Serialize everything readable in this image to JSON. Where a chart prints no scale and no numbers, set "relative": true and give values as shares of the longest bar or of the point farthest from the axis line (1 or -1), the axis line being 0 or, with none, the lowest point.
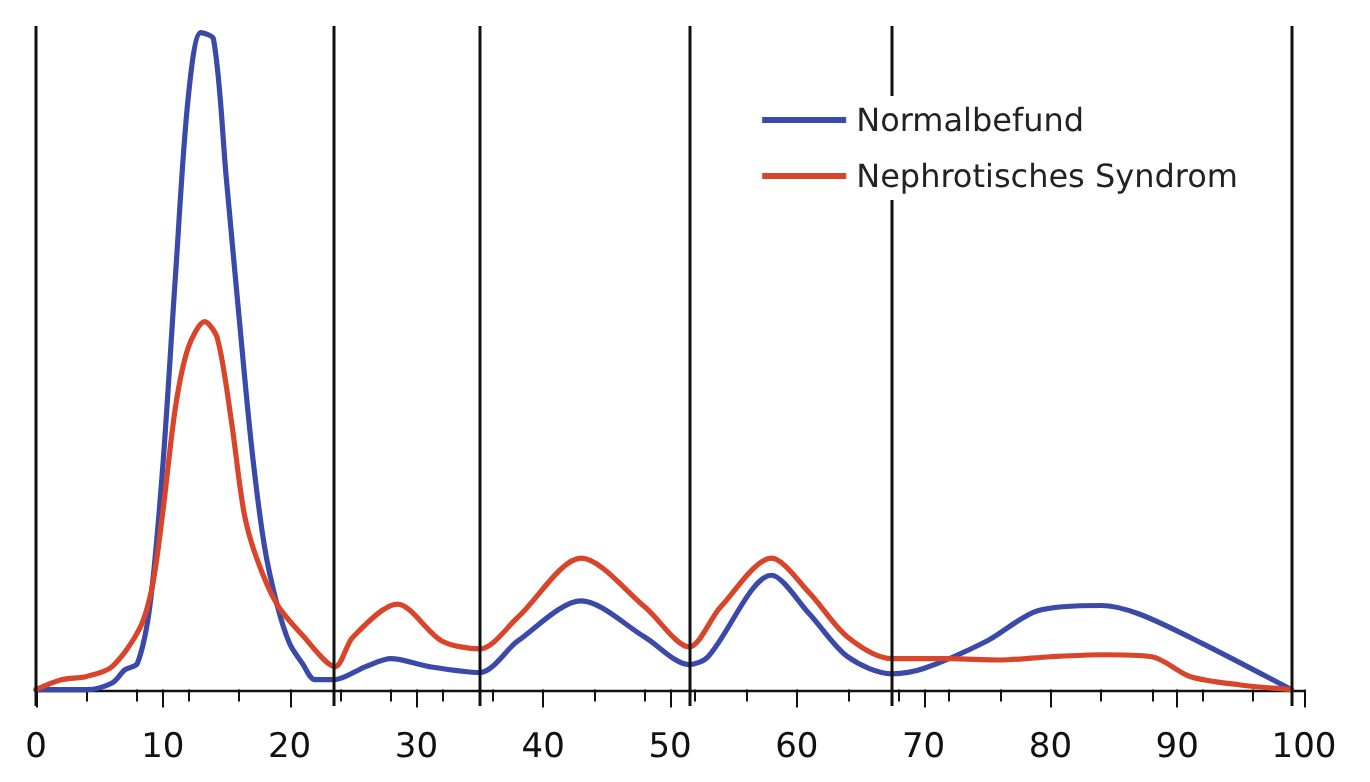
{
  "chart_data": {
    "type": "line",
    "relative": true,
    "xlim": [
      0,
      100
    ],
    "xticks": [
      0,
      10,
      20,
      30,
      40,
      50,
      60,
      70,
      80,
      90,
      100
    ],
    "grid": false,
    "legend": "top right",
    "marker": "none",
    "line_style": "solid",
    "series": [
      {
        "name": "Normalbefund",
        "color": "#3b4aa8",
        "x": [
          0,
          4,
          6,
          7,
          8,
          9,
          10,
          11,
          12,
          13,
          14,
          15,
          16,
          17,
          18,
          19,
          20,
          21,
          22,
          23.5,
          26,
          28,
          31,
          35,
          38,
          43,
          48,
          51.5,
          53,
          58,
          61,
          64,
          67.5,
          70,
          75,
          79,
          84,
          87,
          92,
          99
        ],
        "values": [
          0,
          0,
          0.01,
          0.03,
          0.04,
          0.13,
          0.34,
          0.63,
          0.9,
          1,
          0.99,
          0.78,
          0.57,
          0.37,
          0.22,
          0.13,
          0.07,
          0.04,
          0.015,
          0.015,
          0.035,
          0.047,
          0.035,
          0.026,
          0.074,
          0.135,
          0.08,
          0.038,
          0.05,
          0.174,
          0.115,
          0.05,
          0.024,
          0.032,
          0.074,
          0.12,
          0.128,
          0.115,
          0.07,
          0
        ]
      },
      {
        "name": "Nephrotisches Syndrom",
        "color": "#d9452b",
        "x": [
          0,
          2,
          4,
          6,
          8.2,
          9.2,
          10,
          11,
          12,
          13.3,
          14.3,
          15.4,
          16.4,
          17.4,
          19,
          21,
          23.6,
          25,
          28.5,
          32,
          35,
          38,
          43,
          48,
          51.5,
          54,
          58,
          61,
          64,
          67.5,
          72,
          76,
          80,
          84,
          88,
          91,
          95,
          99
        ],
        "values": [
          0,
          0.015,
          0.02,
          0.035,
          0.094,
          0.16,
          0.27,
          0.43,
          0.52,
          0.56,
          0.535,
          0.41,
          0.27,
          0.2,
          0.13,
          0.083,
          0.035,
          0.08,
          0.13,
          0.074,
          0.062,
          0.11,
          0.2,
          0.126,
          0.065,
          0.126,
          0.2,
          0.147,
          0.08,
          0.047,
          0.047,
          0.045,
          0.05,
          0.053,
          0.05,
          0.02,
          0.007,
          0
        ]
      }
    ],
    "ref_lines": [
      {
        "axis": "x",
        "value": 0
      },
      {
        "axis": "x",
        "value": 23.5
      },
      {
        "axis": "x",
        "value": 35
      },
      {
        "axis": "x",
        "value": 51.5
      },
      {
        "axis": "x",
        "value": 67.5
      },
      {
        "axis": "x",
        "value": 99
      }
    ]
  }
}
